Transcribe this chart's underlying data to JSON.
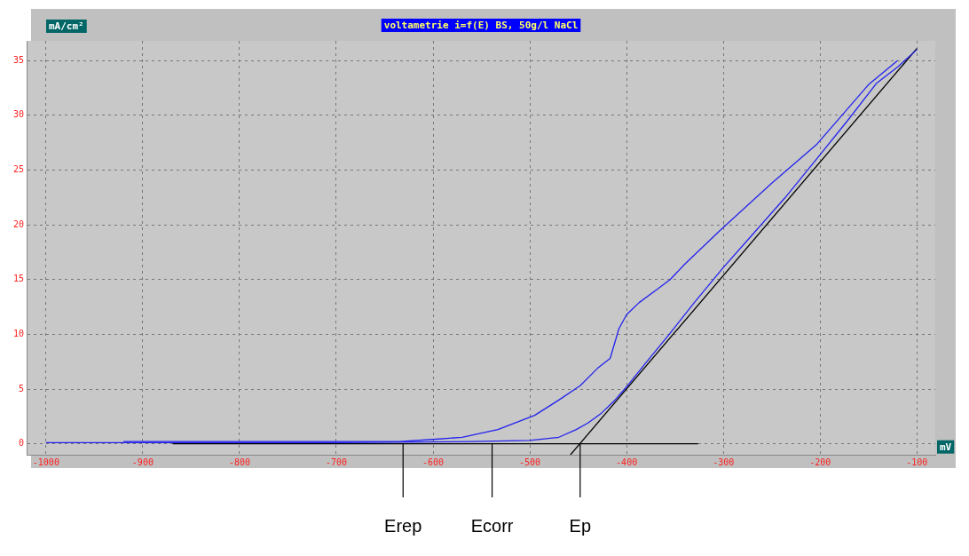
{
  "chart_data": {
    "type": "line",
    "title": "voltametrie i=f(E) BS, 50g/l NaCl",
    "xlabel": "mV",
    "ylabel": "mA/cm²",
    "series": [
      {
        "type": "line",
        "color": "#2222ee",
        "x": [
          -1000,
          -900,
          -700,
          -560,
          -500,
          -470,
          -452,
          -440,
          -426,
          -413,
          -401,
          -380,
          -355,
          -330,
          -300,
          -270,
          -236,
          -200,
          -170,
          -142,
          -120,
          -100
        ],
        "values": [
          0.1,
          0.1,
          0.1,
          0.2,
          0.3,
          0.6,
          1.3,
          1.9,
          2.8,
          3.9,
          5.1,
          7.4,
          10.1,
          12.9,
          16.1,
          19.1,
          22.5,
          26.4,
          29.7,
          32.9,
          34.4,
          36
        ]
      },
      {
        "type": "line",
        "color": "#2222ee",
        "x": [
          -120,
          -150,
          -204,
          -250,
          -302,
          -340,
          -355,
          -370,
          -387,
          -400,
          -408,
          -413,
          -417,
          -430,
          -448,
          -470,
          -495,
          -533,
          -570,
          -600,
          -635,
          -700,
          -800,
          -920
        ],
        "values": [
          35,
          32.8,
          27.3,
          23.8,
          19.6,
          16.4,
          15,
          14,
          12.9,
          11.8,
          10.5,
          9,
          7.8,
          6.9,
          5.3,
          4,
          2.6,
          1.3,
          0.6,
          0.4,
          0.2,
          0.2,
          0.2,
          0.2
        ]
      },
      {
        "type": "line",
        "color": "#000000",
        "x": [
          -458,
          -100
        ],
        "values": [
          -1,
          36.1
        ]
      },
      {
        "type": "line",
        "color": "#000000",
        "x": [
          -869,
          -326
        ],
        "values": [
          0,
          0
        ]
      }
    ],
    "xlim": [
      -1020,
      -81
    ],
    "ylim": [
      -1,
      36.8
    ],
    "xticks": [
      -1000,
      -900,
      -800,
      -700,
      -600,
      -500,
      -400,
      -300,
      -200,
      -100
    ],
    "yticks": [
      0,
      5,
      10,
      15,
      20,
      25,
      30,
      35
    ],
    "grid": true,
    "line_style": "solid",
    "marker": "none",
    "legend": false,
    "annotations": [
      {
        "text": "Erep",
        "x": -631,
        "y": 0
      },
      {
        "text": "Ecorr",
        "x": -539,
        "y": 0
      },
      {
        "text": "Ep",
        "x": -448,
        "y": 0
      }
    ]
  }
}
